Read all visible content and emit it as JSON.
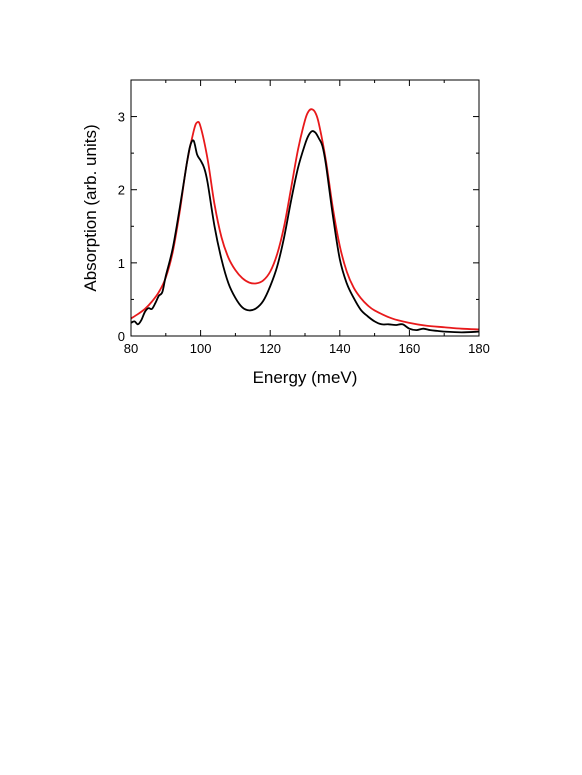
{
  "chart_data": {
    "type": "line",
    "xlabel": "Energy (meV)",
    "ylabel": "Absorption (arb. units)",
    "xlim": [
      80,
      180
    ],
    "ylim": [
      0,
      3.5
    ],
    "xticks": [
      80,
      100,
      120,
      140,
      160,
      180
    ],
    "yticks": [
      0,
      1,
      2,
      3
    ],
    "grid": false,
    "legend": "none",
    "series": [
      {
        "color": "#e8191b",
        "x": [
          80,
          82,
          84,
          86,
          88,
          90,
          92,
          94,
          96,
          98,
          99,
          100,
          102,
          104,
          106,
          108,
          110,
          112,
          114,
          116,
          118,
          120,
          122,
          124,
          126,
          128,
          130,
          131,
          132,
          133,
          134,
          136,
          138,
          140,
          142,
          144,
          146,
          148,
          150,
          155,
          160,
          165,
          170,
          175,
          180
        ],
        "y": [
          0.24,
          0.3,
          0.37,
          0.47,
          0.6,
          0.8,
          1.15,
          1.7,
          2.35,
          2.8,
          2.92,
          2.86,
          2.42,
          1.8,
          1.35,
          1.07,
          0.9,
          0.79,
          0.73,
          0.72,
          0.76,
          0.88,
          1.12,
          1.5,
          2.02,
          2.55,
          2.95,
          3.07,
          3.1,
          3.05,
          2.9,
          2.4,
          1.75,
          1.23,
          0.88,
          0.66,
          0.52,
          0.42,
          0.35,
          0.24,
          0.18,
          0.14,
          0.12,
          0.1,
          0.09
        ]
      },
      {
        "color": "#000000",
        "x": [
          80,
          81,
          82,
          83,
          84,
          85,
          86,
          87,
          88,
          89,
          90,
          92,
          94,
          96,
          97,
          98,
          99,
          100,
          101,
          102,
          104,
          106,
          108,
          110,
          112,
          114,
          116,
          118,
          120,
          122,
          124,
          126,
          128,
          130,
          131,
          132,
          133,
          134,
          135,
          136,
          138,
          140,
          142,
          144,
          146,
          148,
          150,
          152,
          154,
          156,
          158,
          160,
          162,
          164,
          166,
          168,
          170,
          175,
          180
        ],
        "y": [
          0.18,
          0.2,
          0.16,
          0.22,
          0.33,
          0.38,
          0.37,
          0.45,
          0.55,
          0.6,
          0.82,
          1.2,
          1.75,
          2.35,
          2.6,
          2.67,
          2.48,
          2.4,
          2.3,
          2.1,
          1.5,
          1.05,
          0.72,
          0.52,
          0.39,
          0.35,
          0.38,
          0.48,
          0.68,
          0.95,
          1.35,
          1.85,
          2.3,
          2.62,
          2.74,
          2.8,
          2.78,
          2.7,
          2.6,
          2.35,
          1.65,
          1.05,
          0.72,
          0.52,
          0.36,
          0.27,
          0.2,
          0.16,
          0.16,
          0.15,
          0.16,
          0.1,
          0.08,
          0.1,
          0.08,
          0.07,
          0.06,
          0.05,
          0.06
        ]
      }
    ]
  }
}
